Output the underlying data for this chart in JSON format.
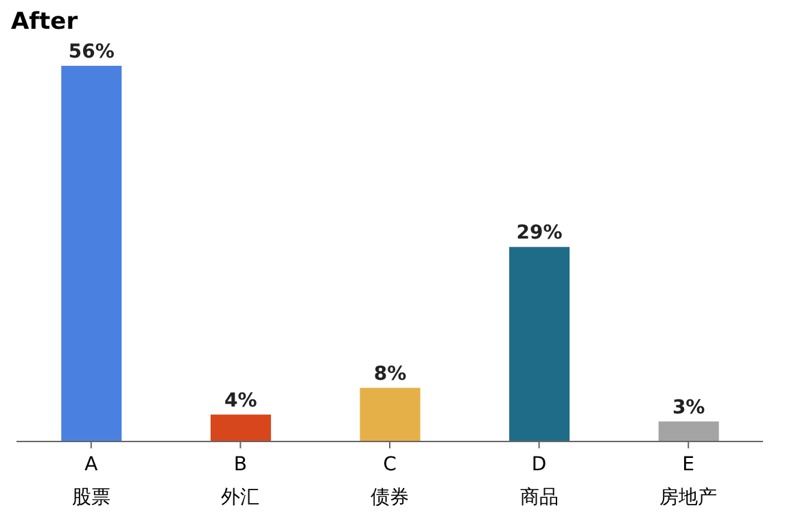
{
  "chart_data": {
    "type": "bar",
    "title": "After",
    "categories": [
      "A\n股票",
      "B\n外汇",
      "C\n债券",
      "D\n商品",
      "E\n房地产"
    ],
    "values": [
      56,
      4,
      8,
      29,
      3
    ],
    "value_labels": [
      "56%",
      "4%",
      "8%",
      "29%",
      "3%"
    ],
    "colors": [
      "#4a80e0",
      "#d8461c",
      "#e6b048",
      "#1e6c88",
      "#a4a4a4"
    ]
  }
}
